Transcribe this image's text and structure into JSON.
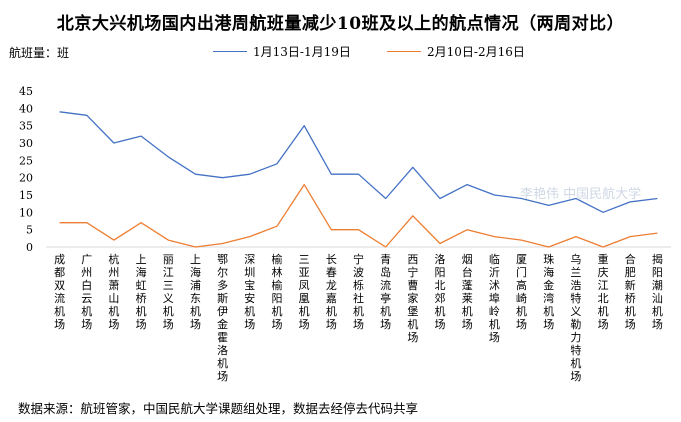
{
  "chart_data": {
    "type": "line",
    "title": "北京大兴机场国内出港周航班量减少10班及以上的航点情况（两周对比）",
    "ylabel": "航班量：班",
    "xlabel": "",
    "ylim": [
      0,
      45
    ],
    "yticks": [
      0,
      5,
      10,
      15,
      20,
      25,
      30,
      35,
      40,
      45
    ],
    "grid": false,
    "legend_position": "top",
    "categories": [
      "成都双流机场",
      "广州白云机场",
      "杭州萧山机场",
      "上海虹桥机场",
      "丽江三义机场",
      "上海浦东机场",
      "鄂尔多斯伊金霍洛机场",
      "深圳宝安机场",
      "榆林榆阳机场",
      "三亚凤凰机场",
      "长春龙嘉机场",
      "宁波栎社机场",
      "青岛流亭机场",
      "西宁曹家堡机场",
      "洛阳北郊机场",
      "烟台蓬莱机场",
      "临沂沭埠岭机场",
      "厦门高崎机场",
      "珠海金湾机场",
      "乌兰浩特义勒力特机场",
      "重庆江北机场",
      "合肥新桥机场",
      "揭阳潮汕机场"
    ],
    "series": [
      {
        "name": "1月13日-1月19日",
        "color": "#4472c4",
        "values": [
          39,
          38,
          30,
          32,
          26,
          21,
          20,
          21,
          24,
          35,
          21,
          21,
          14,
          23,
          14,
          18,
          15,
          14,
          12,
          14,
          10,
          13,
          14
        ]
      },
      {
        "name": "2月10日-2月16日",
        "color": "#ed7d31",
        "values": [
          7,
          7,
          2,
          7,
          2,
          0,
          1,
          3,
          6,
          18,
          5,
          5,
          0,
          9,
          1,
          5,
          3,
          2,
          0,
          3,
          0,
          3,
          4
        ]
      }
    ],
    "watermark": "李艳伟 中国民航大学",
    "source": "数据来源：航班管家，中国民航大学课题组处理，数据去经停去代码共享"
  }
}
